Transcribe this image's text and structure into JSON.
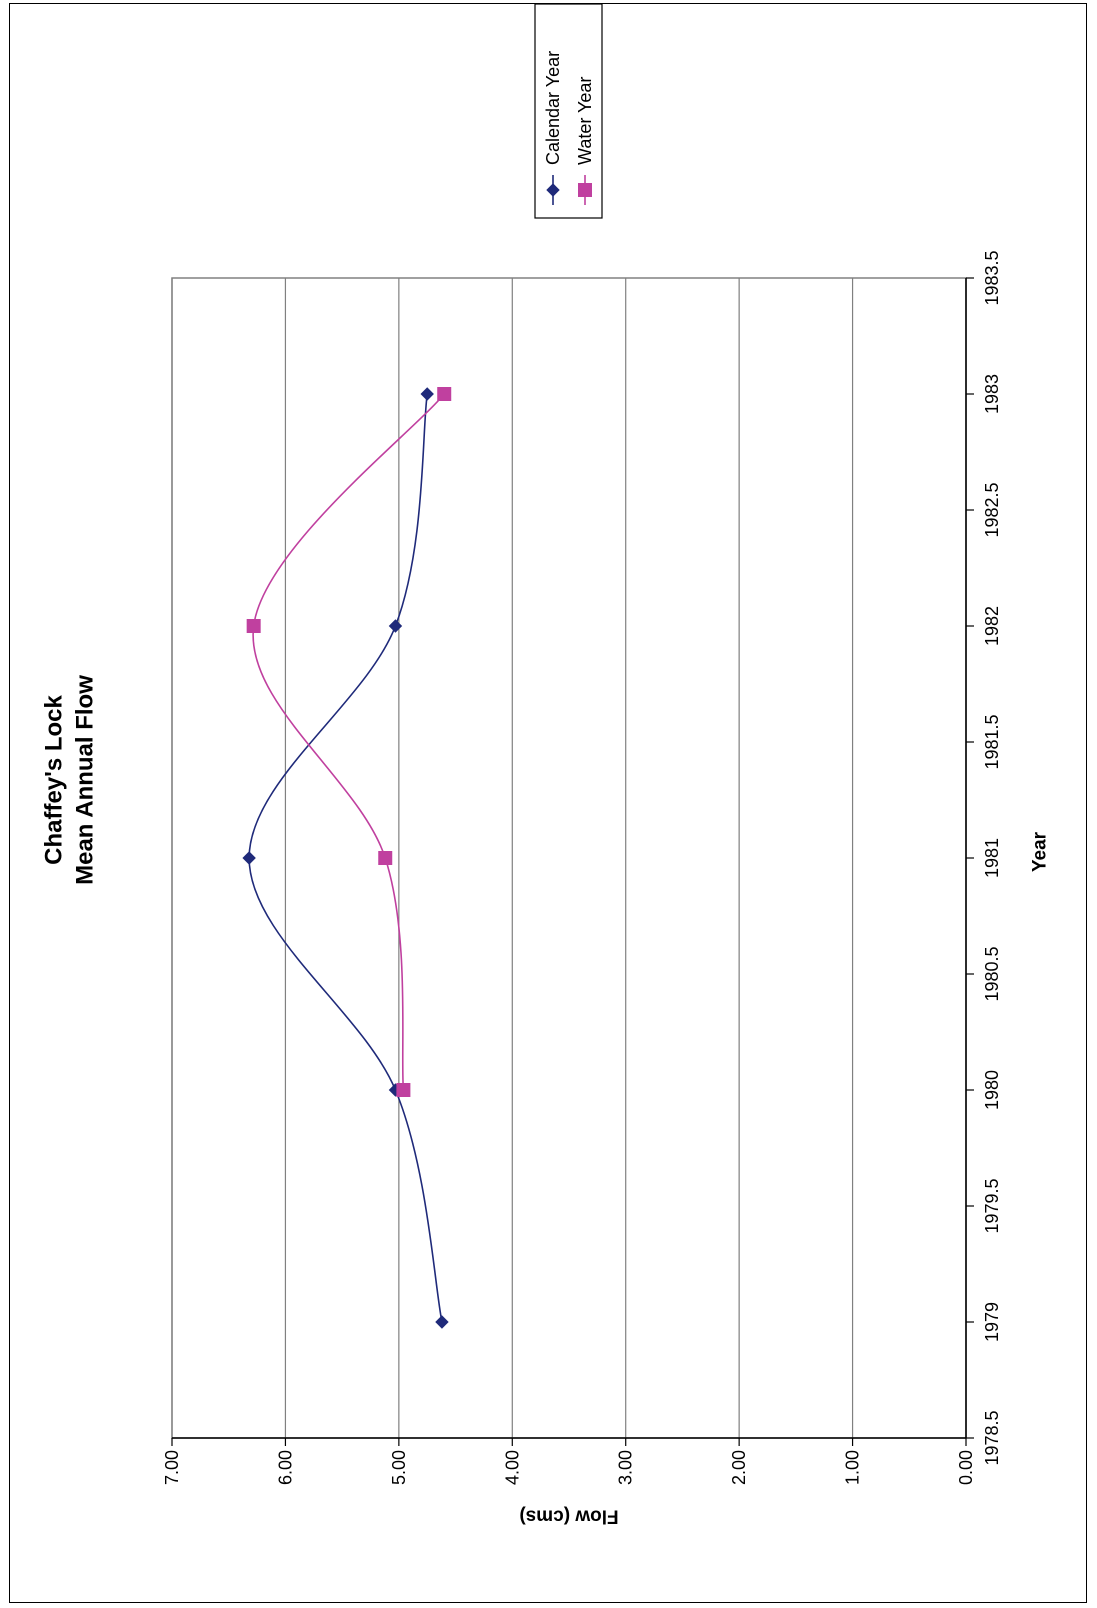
{
  "chart_data": {
    "type": "line",
    "title": "Chaffey's Lock",
    "subtitle": "Mean Annual Flow",
    "xlabel": "Year",
    "ylabel": "Flow (cms)",
    "xlim": [
      1978.5,
      1983.5
    ],
    "ylim": [
      0,
      7
    ],
    "x_ticks": [
      "1978.5",
      "1979",
      "1979.5",
      "1980",
      "1980.5",
      "1981",
      "1981.5",
      "1982",
      "1982.5",
      "1983",
      "1983.5"
    ],
    "y_ticks": [
      "0.00",
      "1.00",
      "2.00",
      "3.00",
      "4.00",
      "5.00",
      "6.00",
      "7.00"
    ],
    "grid": true,
    "smoothed": true,
    "legend_position": "top-right",
    "orientation": "rotated 90 degrees clockwise",
    "series": [
      {
        "name": "Calendar Year",
        "marker": "diamond",
        "color": "#1F2A7A",
        "points": [
          {
            "x": 1979,
            "y": 4.62
          },
          {
            "x": 1980,
            "y": 5.03
          },
          {
            "x": 1981,
            "y": 6.32
          },
          {
            "x": 1982,
            "y": 5.03
          },
          {
            "x": 1983,
            "y": 4.75
          }
        ]
      },
      {
        "name": "Water Year",
        "marker": "square",
        "color": "#C0409F",
        "points": [
          {
            "x": 1980,
            "y": 4.96
          },
          {
            "x": 1981,
            "y": 5.12
          },
          {
            "x": 1982,
            "y": 6.28
          },
          {
            "x": 1983,
            "y": 4.6
          }
        ]
      }
    ]
  }
}
